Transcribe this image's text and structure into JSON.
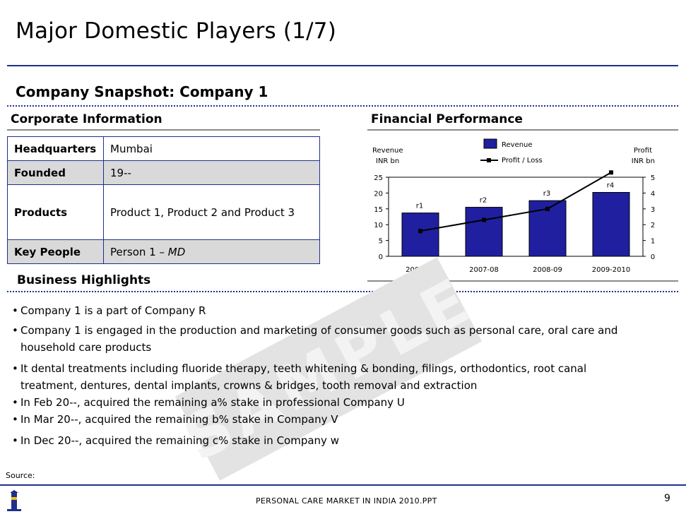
{
  "header": {
    "title": "Major Domestic Players (1/7)"
  },
  "snapshot": {
    "title": "Company Snapshot: Company 1"
  },
  "corporate": {
    "heading": "Corporate Information",
    "rows": [
      {
        "key": "Headquarters",
        "value": "Mumbai"
      },
      {
        "key": "Founded",
        "value": "19--"
      },
      {
        "key": "Products",
        "value": "Product 1, Product 2 and Product 3"
      },
      {
        "key": "Key People",
        "value": "Person 1 – ",
        "value_italic": "MD"
      }
    ]
  },
  "financial": {
    "heading": "Financial Performance"
  },
  "chart_data": {
    "type": "bar",
    "categories": [
      "2006-07",
      "2007-08",
      "2008-09",
      "2009-2010"
    ],
    "series": [
      {
        "name": "Revenue",
        "type": "bar",
        "axis": "left",
        "values": [
          13.7,
          15.5,
          17.6,
          20.2
        ],
        "labels": [
          "r1",
          "r2",
          "r3",
          "r4"
        ],
        "color": "#1f1fa0"
      },
      {
        "name": "Profit / Loss",
        "type": "line",
        "axis": "right",
        "values": [
          1.6,
          2.3,
          3.0,
          5.3
        ],
        "color": "#000000"
      }
    ],
    "left_axis": {
      "label_line1": "Revenue",
      "label_line2": "INR bn",
      "range": [
        0,
        25
      ],
      "ticks": [
        "0",
        "5",
        "10",
        "15",
        "20",
        "25"
      ]
    },
    "right_axis": {
      "label_line1": "Profit",
      "label_line2": "INR bn",
      "range": [
        0,
        5
      ],
      "ticks": [
        "0",
        "1",
        "2",
        "3",
        "4",
        "5"
      ]
    },
    "legend_position": "top-center",
    "grid": false
  },
  "highlights": {
    "heading": "Business Highlights",
    "items": [
      "Company 1 is a part of Company R",
      "Company 1 is engaged in the production and marketing of consumer goods such as personal care, oral care and household care products",
      "It dental treatments including fluoride therapy, teeth whitening & bonding, filings, orthodontics, root canal treatment, dentures, dental implants, crowns & bridges, tooth removal and extraction",
      "In Feb 20--, acquired the remaining a% stake in professional Company U",
      "In Mar 20--, acquired the remaining b% stake in Company V",
      "In Dec 20--, acquired the remaining c% stake in Company w"
    ]
  },
  "watermark": "SAMPLE",
  "footer": {
    "source": "Source:",
    "center": "PERSONAL CARE MARKET IN INDIA 2010.PPT",
    "page": "9"
  }
}
